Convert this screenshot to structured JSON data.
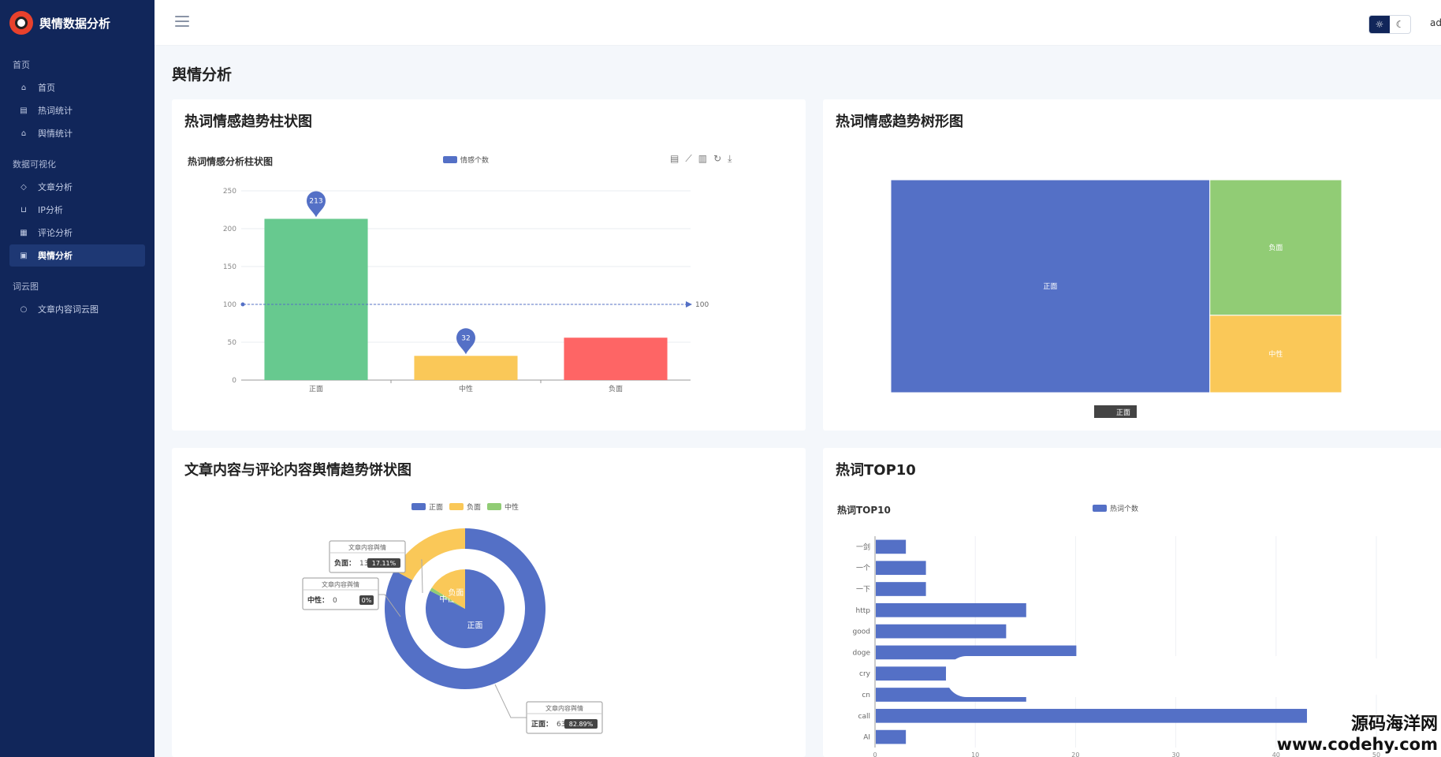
{
  "brand": {
    "title": "舆情数据分析"
  },
  "sidebar": {
    "groups": [
      {
        "label": "首页",
        "items": [
          {
            "label": "首页",
            "icon": "home-icon",
            "glyph": "⌂",
            "name": "sidebar-item-home"
          },
          {
            "label": "热词统计",
            "icon": "table-icon",
            "glyph": "▤",
            "name": "sidebar-item-hotword-stats"
          },
          {
            "label": "舆情统计",
            "icon": "bank-icon",
            "glyph": "⌂",
            "name": "sidebar-item-opinion-stats"
          }
        ]
      },
      {
        "label": "数据可视化",
        "items": [
          {
            "label": "文章分析",
            "icon": "tag-icon",
            "glyph": "◇",
            "name": "sidebar-item-article-analysis"
          },
          {
            "label": "IP分析",
            "icon": "cart-icon",
            "glyph": "⊔",
            "name": "sidebar-item-ip-analysis"
          },
          {
            "label": "评论分析",
            "icon": "document-icon",
            "glyph": "▦",
            "name": "sidebar-item-comment-analysis"
          },
          {
            "label": "舆情分析",
            "icon": "clipboard-icon",
            "glyph": "▣",
            "name": "sidebar-item-opinion-analysis",
            "active": true
          }
        ]
      },
      {
        "label": "词云图",
        "items": [
          {
            "label": "文章内容词云图",
            "icon": "chat-icon",
            "glyph": "○",
            "name": "sidebar-item-wordcloud"
          }
        ]
      }
    ]
  },
  "topbar": {
    "user": "admin"
  },
  "page": {
    "title": "舆情分析"
  },
  "cards": {
    "bar": {
      "title": "热词情感趋势柱状图",
      "subtitle": "热词情感分析柱状图",
      "legend": "情感个数"
    },
    "treemap": {
      "title": "热词情感趋势树形图",
      "breadcrumb": "正面"
    },
    "pie": {
      "title": "文章内容与评论内容舆情趋势饼状图"
    },
    "top10": {
      "title": "热词TOP10",
      "subtitle": "热词TOP10",
      "legend": "热词个数"
    }
  },
  "colors": {
    "green": "#67c98f",
    "yellow": "#fac858",
    "red": "#fe6565",
    "blue": "#5470c6",
    "lightgreen": "#91cc75"
  },
  "chart_data": [
    {
      "type": "bar",
      "title": "热词情感分析柱状图",
      "categories": [
        "正面",
        "中性",
        "负面"
      ],
      "series": [
        {
          "name": "情感个数",
          "values": [
            213,
            32,
            56
          ]
        }
      ],
      "colors": [
        "#67c98f",
        "#fac858",
        "#fe6565"
      ],
      "ylim": [
        0,
        250
      ],
      "yticks": [
        0,
        50,
        100,
        150,
        200,
        250
      ],
      "markpoints": [
        {
          "category": "正面",
          "label": "213"
        },
        {
          "category": "中性",
          "label": "32"
        }
      ],
      "markline": {
        "value": 100,
        "label": "100"
      },
      "grid": true,
      "legend": "top"
    },
    {
      "type": "treemap",
      "items": [
        {
          "name": "正面",
          "value": 213,
          "color": "#5470c6"
        },
        {
          "name": "负面",
          "value": 56,
          "color": "#91cc75"
        },
        {
          "name": "中性",
          "value": 32,
          "color": "#fac858"
        }
      ]
    },
    {
      "type": "pie",
      "legend": [
        "正面",
        "负面",
        "中性"
      ],
      "legend_colors": [
        "#5470c6",
        "#fac858",
        "#91cc75"
      ],
      "inner": {
        "labels": [
          {
            "name": "正面",
            "value": 82.5
          },
          {
            "name": "负面",
            "value": 16.0
          },
          {
            "name": "中性",
            "value": 1.5
          }
        ]
      },
      "outer": {
        "name": "文章内容舆情",
        "slices": [
          {
            "name": "正面",
            "value": 63,
            "percent": "82.89%"
          },
          {
            "name": "负面",
            "value": 13,
            "percent": "17.11%"
          },
          {
            "name": "中性",
            "value": 0,
            "percent": "0%"
          }
        ]
      },
      "tooltips": [
        {
          "title": "文章内容舆情",
          "label": "负面：",
          "value": "13",
          "percent": "17.11%"
        },
        {
          "title": "文章内容舆情",
          "label": "中性：",
          "value": "0",
          "percent": "0%"
        },
        {
          "title": "文章内容舆情",
          "label": "正面：",
          "value": "63",
          "percent": "82.89%"
        }
      ]
    },
    {
      "type": "bar",
      "orientation": "horizontal",
      "title": "热词TOP10",
      "categories": [
        "一剑",
        "一个",
        "一下",
        "http",
        "good",
        "doge",
        "cry",
        "cn",
        "call",
        "AI"
      ],
      "series": [
        {
          "name": "热词个数",
          "values": [
            3,
            5,
            5,
            15,
            13,
            20,
            7,
            15,
            43,
            3
          ]
        }
      ],
      "xlim": [
        0,
        50
      ],
      "xticks": [
        0,
        10,
        20,
        30,
        40,
        50
      ],
      "grid": true,
      "legend": "top"
    }
  ],
  "watermark": {
    "line1": "源码海洋网",
    "line2": "www.codehy.com"
  }
}
